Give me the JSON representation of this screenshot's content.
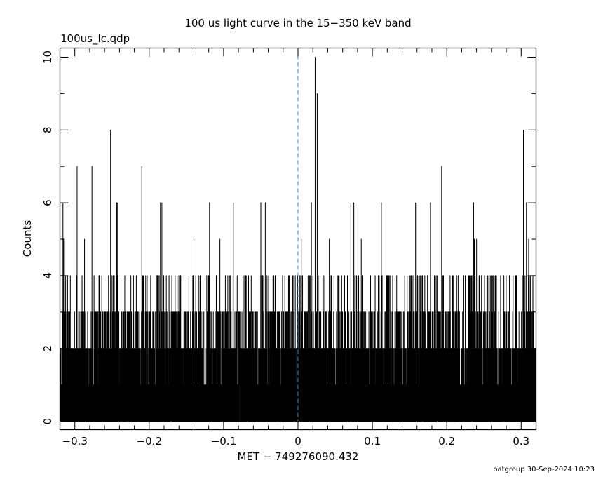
{
  "chart_data": {
    "type": "line",
    "style": "histogram-step",
    "title": "100 us light curve in the 15−350 keV band",
    "file_label": "100us_lc.qdp",
    "xlabel": "MET − 749276090.432",
    "ylabel": "Counts",
    "footer": "batgroup 30-Sep-2024 10:23",
    "xlim": [
      -0.32,
      0.32
    ],
    "ylim": [
      -0.23,
      10.25
    ],
    "x_ticks": [
      -0.3,
      -0.2,
      -0.1,
      0,
      0.1,
      0.2,
      0.3
    ],
    "x_tick_labels": [
      "−0.3",
      "−0.2",
      "−0.1",
      "0",
      "0.1",
      "0.2",
      "0.3"
    ],
    "x_minor_step": 0.02,
    "y_ticks": [
      0,
      2,
      4,
      6,
      8,
      10
    ],
    "y_tick_labels": [
      "0",
      "2",
      "4",
      "6",
      "8",
      "10"
    ],
    "y_minor_step": 1,
    "reference_line_x": 0,
    "reference_line_color": "#3a86d8",
    "bin_size": 0.0001,
    "background": {
      "mean_counts_per_bin": 1.2,
      "seed": 749276090
    },
    "peaks": [
      {
        "x": 0.023,
        "y": 10
      },
      {
        "x": 0.0258,
        "y": 9
      },
      {
        "x": -0.252,
        "y": 8
      },
      {
        "x": 0.303,
        "y": 8
      },
      {
        "x": -0.297,
        "y": 7
      },
      {
        "x": -0.277,
        "y": 7
      },
      {
        "x": -0.21,
        "y": 7
      },
      {
        "x": 0.193,
        "y": 7
      },
      {
        "x": -0.316,
        "y": 6
      },
      {
        "x": -0.244,
        "y": 6
      },
      {
        "x": -0.243,
        "y": 6
      },
      {
        "x": -0.185,
        "y": 6
      },
      {
        "x": -0.183,
        "y": 6
      },
      {
        "x": -0.119,
        "y": 6
      },
      {
        "x": -0.087,
        "y": 6
      },
      {
        "x": -0.05,
        "y": 6
      },
      {
        "x": -0.044,
        "y": 6
      },
      {
        "x": 0.018,
        "y": 6
      },
      {
        "x": 0.071,
        "y": 6
      },
      {
        "x": 0.075,
        "y": 6
      },
      {
        "x": 0.112,
        "y": 6
      },
      {
        "x": 0.158,
        "y": 6
      },
      {
        "x": 0.159,
        "y": 6
      },
      {
        "x": 0.178,
        "y": 6
      },
      {
        "x": 0.236,
        "y": 6
      },
      {
        "x": 0.307,
        "y": 6
      },
      {
        "x": -0.315,
        "y": 5
      },
      {
        "x": -0.287,
        "y": 5
      },
      {
        "x": -0.14,
        "y": 5
      },
      {
        "x": -0.105,
        "y": 5
      },
      {
        "x": 0.005,
        "y": 5
      },
      {
        "x": 0.042,
        "y": 5
      },
      {
        "x": 0.085,
        "y": 5
      },
      {
        "x": 0.237,
        "y": 5
      },
      {
        "x": 0.24,
        "y": 5
      },
      {
        "x": 0.31,
        "y": 5
      },
      {
        "x": -0.078,
        "y": 0
      },
      {
        "x": 0.034,
        "y": 0
      },
      {
        "x": 0.317,
        "y": 0
      }
    ]
  }
}
